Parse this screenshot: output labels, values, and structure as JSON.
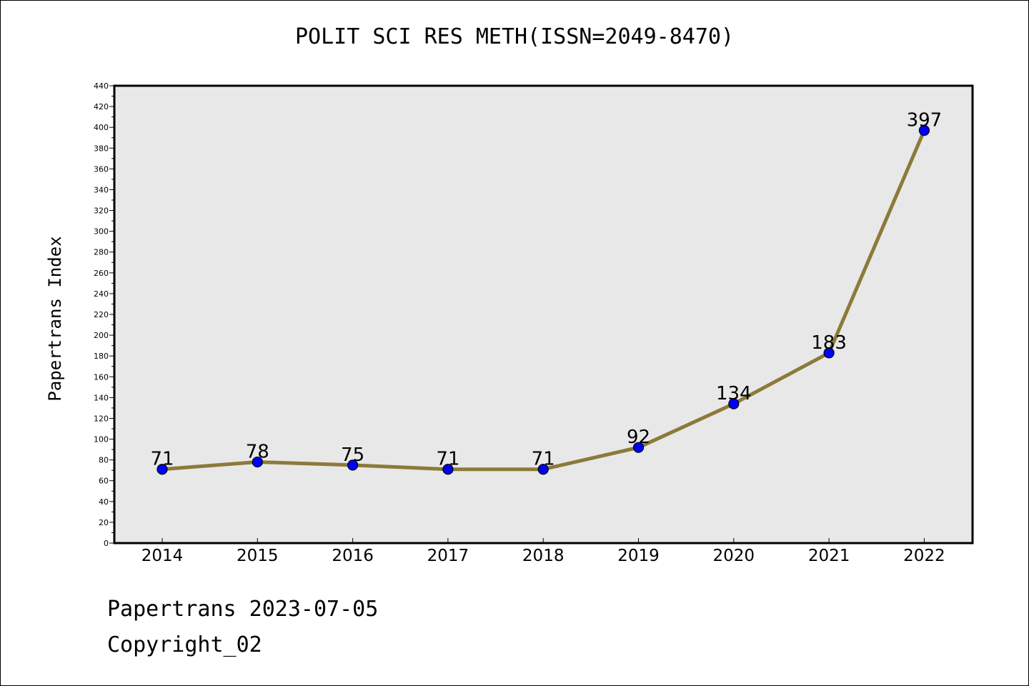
{
  "chart_data": {
    "type": "line",
    "title": "POLIT SCI RES METH(ISSN=2049-8470)",
    "xlabel": "",
    "ylabel": "Papertrans Index",
    "categories": [
      "2014",
      "2015",
      "2016",
      "2017",
      "2018",
      "2019",
      "2020",
      "2021",
      "2022"
    ],
    "series": [
      {
        "values": [
          71,
          78,
          75,
          71,
          71,
          92,
          134,
          183,
          397
        ]
      }
    ],
    "ylim": [
      0,
      440
    ],
    "ytick_step": 20,
    "grid": false,
    "legend": "none",
    "colors": {
      "line": "#8c7a3a",
      "marker": "#0000ff",
      "plot_background": "#e8e8e8"
    }
  },
  "footer": {
    "line1": "Papertrans 2023-07-05",
    "line2": "Copyright_02"
  }
}
